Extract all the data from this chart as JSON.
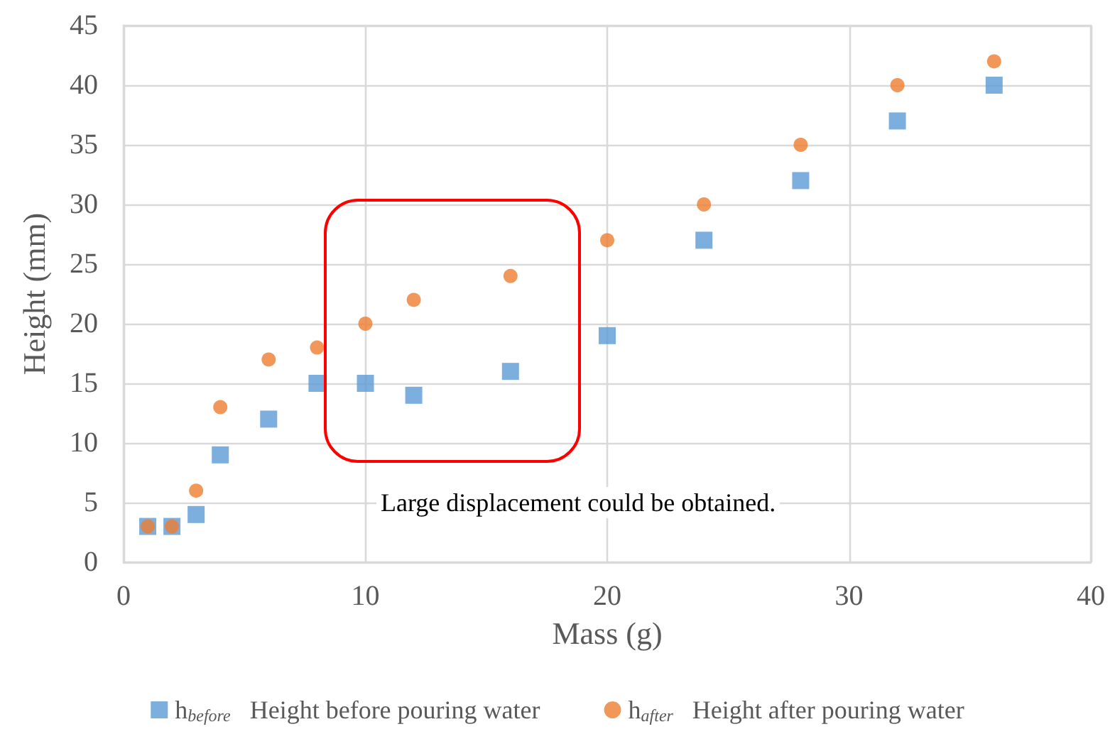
{
  "chart_data": {
    "type": "scatter",
    "xlabel": "Mass (g)",
    "ylabel": "Height (mm)",
    "x": [
      1,
      2,
      3,
      4,
      6,
      8,
      10,
      12,
      16,
      20,
      24,
      28,
      32,
      36
    ],
    "series": [
      {
        "name": "h$_{before}$   Height before pouring water",
        "color": "#5b9bd5",
        "marker": "square",
        "values": [
          3,
          3,
          4,
          9,
          12,
          15,
          15,
          14,
          16,
          19,
          27,
          32,
          37,
          40
        ]
      },
      {
        "name": "h$_{after}$   Height after pouring water",
        "color": "#ed7d31",
        "marker": "circle",
        "values": [
          3,
          3,
          6,
          13,
          17,
          18,
          20,
          22,
          24,
          27,
          30,
          35,
          40,
          42
        ]
      }
    ],
    "xlim": [
      0,
      40
    ],
    "xticks": [
      0,
      10,
      20,
      30,
      40
    ],
    "ylim": [
      0,
      45
    ],
    "yticks": [
      0,
      5,
      10,
      15,
      20,
      25,
      30,
      35,
      40,
      45
    ],
    "grid": true,
    "legend": "bottom",
    "annotations": [
      "Large displacement could be obtained."
    ]
  }
}
